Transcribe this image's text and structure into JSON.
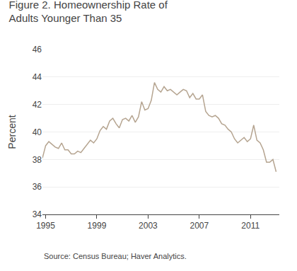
{
  "chart_data": {
    "type": "line",
    "title": "Figure 2. Homeownership Rate of\nAdults Younger Than 35",
    "y_label": "Percent",
    "annotations": [
      "Source: Census Bureau; Haver Analytics."
    ],
    "x": [
      1994.75,
      1995.0,
      1995.25,
      1995.5,
      1995.75,
      1996.0,
      1996.25,
      1996.5,
      1996.75,
      1997.0,
      1997.25,
      1997.5,
      1997.75,
      1998.0,
      1998.25,
      1998.5,
      1998.75,
      1999.0,
      1999.25,
      1999.5,
      1999.75,
      2000.0,
      2000.25,
      2000.5,
      2000.75,
      2001.0,
      2001.25,
      2001.5,
      2001.75,
      2002.0,
      2002.25,
      2002.5,
      2002.75,
      2003.0,
      2003.25,
      2003.5,
      2003.75,
      2004.0,
      2004.25,
      2004.5,
      2004.75,
      2005.0,
      2005.25,
      2005.5,
      2005.75,
      2006.0,
      2006.25,
      2006.5,
      2006.75,
      2007.0,
      2007.25,
      2007.5,
      2007.75,
      2008.0,
      2008.25,
      2008.5,
      2008.75,
      2009.0,
      2009.25,
      2009.5,
      2009.75,
      2010.0,
      2010.25,
      2010.5,
      2010.75,
      2011.0,
      2011.25,
      2011.5,
      2011.75,
      2012.0,
      2012.25,
      2012.5,
      2012.75,
      2013.0
    ],
    "values": [
      38.1,
      39.0,
      39.3,
      39.1,
      38.9,
      38.8,
      39.2,
      38.7,
      38.7,
      38.4,
      38.4,
      38.6,
      38.5,
      38.8,
      39.1,
      39.4,
      39.2,
      39.5,
      40.1,
      40.4,
      40.2,
      40.8,
      41.0,
      40.6,
      40.3,
      40.9,
      41.0,
      40.8,
      41.2,
      40.7,
      41.1,
      42.2,
      41.6,
      41.7,
      42.3,
      43.6,
      43.1,
      42.9,
      43.3,
      43.0,
      43.1,
      42.9,
      42.7,
      42.9,
      43.1,
      43.0,
      42.5,
      42.8,
      42.4,
      42.4,
      42.7,
      41.5,
      41.2,
      41.1,
      41.2,
      41.0,
      40.6,
      40.5,
      40.2,
      40.0,
      39.5,
      39.2,
      39.4,
      39.6,
      39.3,
      39.5,
      40.5,
      39.4,
      39.2,
      38.7,
      37.8,
      37.8,
      38.0,
      37.1
    ],
    "color": "#b5a490",
    "xlim": [
      1994.75,
      2013.25
    ],
    "xticks": [
      1995,
      1999,
      2003,
      2007,
      2011
    ],
    "ylim": [
      34,
      46
    ],
    "yticks": [
      34,
      36,
      38,
      40,
      42,
      44,
      46
    ],
    "grid": true
  }
}
